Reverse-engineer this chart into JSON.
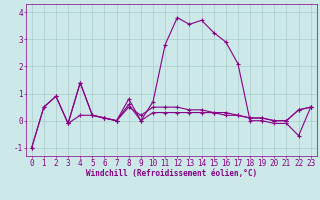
{
  "title": "",
  "xlabel": "Windchill (Refroidissement éolien,°C)",
  "ylabel": "",
  "bg_color": "#cce8e8",
  "line_color": "#880088",
  "grid_color": "#aacccc",
  "xlim": [
    -0.5,
    23.5
  ],
  "ylim": [
    -1.3,
    4.3
  ],
  "xticks": [
    0,
    1,
    2,
    3,
    4,
    5,
    6,
    7,
    8,
    9,
    10,
    11,
    12,
    13,
    14,
    15,
    16,
    17,
    18,
    19,
    20,
    21,
    22,
    23
  ],
  "yticks": [
    -1,
    0,
    1,
    2,
    3,
    4
  ],
  "line1_x": [
    0,
    1,
    2,
    3,
    4,
    5,
    6,
    7,
    8,
    9,
    10,
    11,
    12,
    13,
    14,
    15,
    16,
    17,
    18,
    19,
    20,
    21,
    22,
    23
  ],
  "line1_y": [
    -1.0,
    0.5,
    0.9,
    -0.1,
    1.4,
    0.2,
    0.1,
    0.0,
    0.8,
    0.0,
    0.7,
    2.8,
    3.8,
    3.55,
    3.7,
    3.25,
    2.9,
    2.1,
    0.0,
    0.0,
    -0.1,
    -0.1,
    -0.55,
    0.5
  ],
  "line2_x": [
    0,
    1,
    2,
    3,
    4,
    5,
    6,
    7,
    8,
    9,
    10,
    11,
    12,
    13,
    14,
    15,
    16,
    17,
    18,
    19,
    20,
    21,
    22,
    23
  ],
  "line2_y": [
    -1.0,
    0.5,
    0.9,
    -0.1,
    0.2,
    0.2,
    0.1,
    0.0,
    0.5,
    0.2,
    0.5,
    0.5,
    0.5,
    0.4,
    0.4,
    0.3,
    0.3,
    0.2,
    0.1,
    0.1,
    0.0,
    0.0,
    0.4,
    0.5
  ],
  "line3_x": [
    3,
    4,
    5,
    6,
    7,
    8,
    9,
    10,
    11,
    12,
    13,
    14,
    15,
    16,
    17,
    18,
    19,
    20,
    21,
    22,
    23
  ],
  "line3_y": [
    -0.1,
    1.4,
    0.2,
    0.1,
    0.0,
    0.6,
    0.0,
    0.3,
    0.3,
    0.3,
    0.3,
    0.3,
    0.3,
    0.2,
    0.2,
    0.1,
    0.1,
    0.0,
    0.0,
    0.4,
    0.5
  ],
  "xlabel_fontsize": 5.5,
  "tick_fontsize": 5.5,
  "line_width": 0.8,
  "marker_size": 2.5
}
